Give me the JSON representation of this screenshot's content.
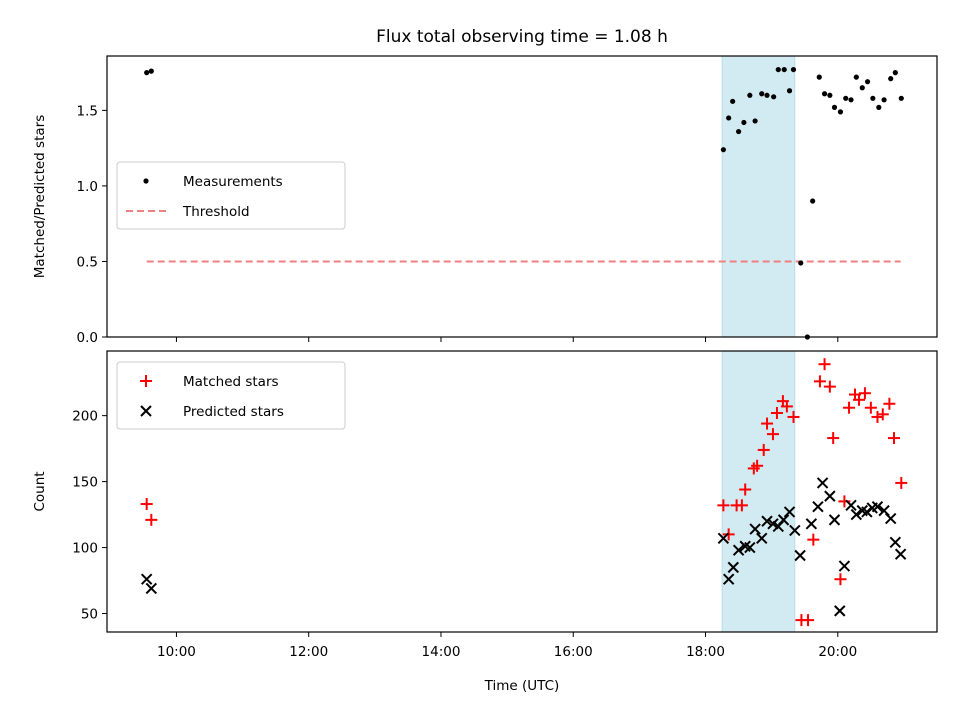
{
  "chart_data": {
    "type": "scatter",
    "title": "Flux total observing time = 1.08 h",
    "xlabel": "Time (UTC)",
    "x_unit": "hours",
    "xlim": [
      8.95,
      21.5
    ],
    "xticks": [
      10,
      12,
      14,
      16,
      18,
      20
    ],
    "xtick_labels": [
      "10:00",
      "12:00",
      "14:00",
      "16:00",
      "18:00",
      "20:00"
    ],
    "highlight_span": [
      18.25,
      19.35
    ],
    "highlight_color": "#add8e6",
    "panels": [
      {
        "id": "ratio",
        "ylabel": "Matched/Predicted stars",
        "ylim": [
          0,
          1.86
        ],
        "yticks": [
          0.0,
          0.5,
          1.0,
          1.5
        ],
        "ytick_labels": [
          "0.0",
          "0.5",
          "1.0",
          "1.5"
        ],
        "legend": {
          "location": "center-left",
          "entries": [
            "Measurements",
            "Threshold"
          ]
        },
        "threshold": {
          "name": "Threshold",
          "value": 0.5,
          "x_range": [
            9.55,
            20.95
          ],
          "color": "#f08080"
        },
        "series": [
          {
            "name": "Measurements",
            "marker": "dot",
            "color": "#000000",
            "points": [
              [
                9.55,
                1.75
              ],
              [
                9.62,
                1.76
              ],
              [
                18.27,
                1.24
              ],
              [
                18.35,
                1.45
              ],
              [
                18.41,
                1.56
              ],
              [
                18.5,
                1.36
              ],
              [
                18.58,
                1.42
              ],
              [
                18.67,
                1.6
              ],
              [
                18.75,
                1.43
              ],
              [
                18.85,
                1.61
              ],
              [
                18.93,
                1.6
              ],
              [
                19.03,
                1.59
              ],
              [
                19.1,
                1.77
              ],
              [
                19.19,
                1.77
              ],
              [
                19.27,
                1.63
              ],
              [
                19.33,
                1.77
              ],
              [
                19.44,
                0.49
              ],
              [
                19.54,
                0.0
              ],
              [
                19.62,
                0.9
              ],
              [
                19.72,
                1.72
              ],
              [
                19.8,
                1.61
              ],
              [
                19.88,
                1.6
              ],
              [
                19.95,
                1.52
              ],
              [
                20.04,
                1.49
              ],
              [
                20.12,
                1.58
              ],
              [
                20.2,
                1.57
              ],
              [
                20.28,
                1.72
              ],
              [
                20.37,
                1.65
              ],
              [
                20.45,
                1.69
              ],
              [
                20.53,
                1.58
              ],
              [
                20.62,
                1.52
              ],
              [
                20.7,
                1.57
              ],
              [
                20.8,
                1.71
              ],
              [
                20.87,
                1.75
              ],
              [
                20.96,
                1.58
              ]
            ]
          }
        ]
      },
      {
        "id": "count",
        "ylabel": "Count",
        "ylim": [
          36,
          249
        ],
        "yticks": [
          50,
          100,
          150,
          200
        ],
        "ytick_labels": [
          "50",
          "100",
          "150",
          "200"
        ],
        "legend": {
          "location": "top-left",
          "entries": [
            "Matched stars",
            "Predicted stars"
          ]
        },
        "series": [
          {
            "name": "Matched stars",
            "marker": "plus",
            "color": "#ff0000",
            "points": [
              [
                9.55,
                133
              ],
              [
                9.62,
                121
              ],
              [
                18.27,
                132
              ],
              [
                18.35,
                110
              ],
              [
                18.47,
                132
              ],
              [
                18.55,
                132
              ],
              [
                18.6,
                144
              ],
              [
                18.73,
                160
              ],
              [
                18.78,
                162
              ],
              [
                18.88,
                174
              ],
              [
                18.93,
                194
              ],
              [
                19.02,
                186
              ],
              [
                19.08,
                202
              ],
              [
                19.17,
                211
              ],
              [
                19.23,
                207
              ],
              [
                19.33,
                199
              ],
              [
                19.45,
                45
              ],
              [
                19.55,
                45
              ],
              [
                19.63,
                106
              ],
              [
                19.73,
                226
              ],
              [
                19.8,
                239
              ],
              [
                19.88,
                222
              ],
              [
                19.93,
                183
              ],
              [
                20.04,
                76
              ],
              [
                20.1,
                135
              ],
              [
                20.17,
                206
              ],
              [
                20.26,
                216
              ],
              [
                20.32,
                212
              ],
              [
                20.41,
                217
              ],
              [
                20.5,
                206
              ],
              [
                20.6,
                199
              ],
              [
                20.68,
                201
              ],
              [
                20.78,
                209
              ],
              [
                20.85,
                183
              ],
              [
                20.96,
                149
              ]
            ]
          },
          {
            "name": "Predicted stars",
            "marker": "x",
            "color": "#000000",
            "points": [
              [
                9.55,
                76
              ],
              [
                9.62,
                69
              ],
              [
                18.27,
                107
              ],
              [
                18.35,
                76
              ],
              [
                18.42,
                85
              ],
              [
                18.5,
                98
              ],
              [
                18.6,
                101
              ],
              [
                18.67,
                100
              ],
              [
                18.75,
                114
              ],
              [
                18.85,
                107
              ],
              [
                18.93,
                120
              ],
              [
                19.02,
                118
              ],
              [
                19.1,
                116
              ],
              [
                19.18,
                121
              ],
              [
                19.27,
                127
              ],
              [
                19.35,
                113
              ],
              [
                19.43,
                94
              ],
              [
                19.6,
                118
              ],
              [
                19.7,
                131
              ],
              [
                19.77,
                149
              ],
              [
                19.88,
                139
              ],
              [
                19.95,
                121
              ],
              [
                20.03,
                52
              ],
              [
                20.1,
                86
              ],
              [
                20.2,
                132
              ],
              [
                20.28,
                125
              ],
              [
                20.37,
                128
              ],
              [
                20.44,
                127
              ],
              [
                20.52,
                130
              ],
              [
                20.6,
                131
              ],
              [
                20.7,
                128
              ],
              [
                20.8,
                122
              ],
              [
                20.87,
                104
              ],
              [
                20.95,
                95
              ]
            ]
          }
        ]
      }
    ]
  }
}
